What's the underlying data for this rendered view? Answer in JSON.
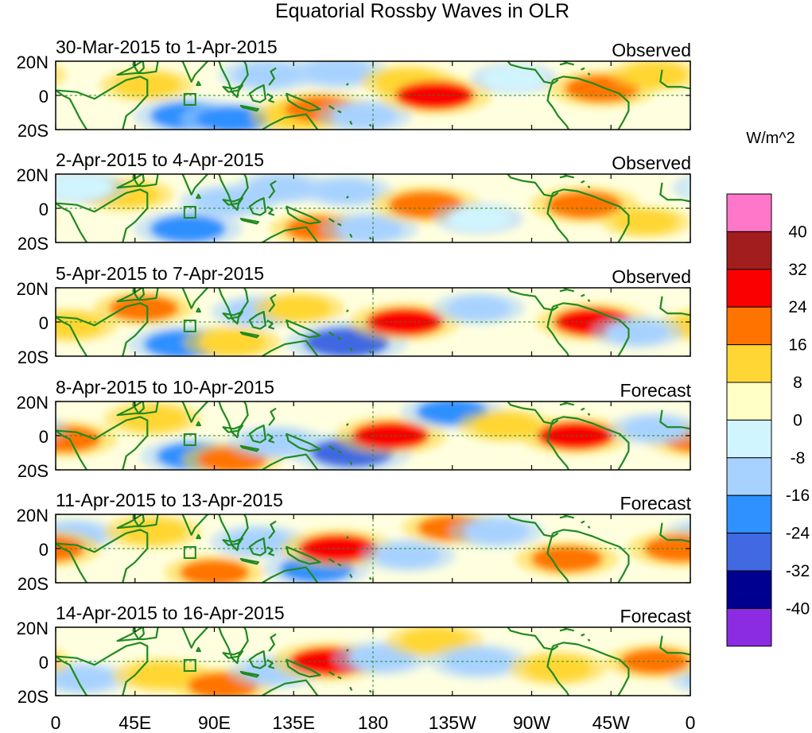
{
  "title": "Equatorial Rossby Waves in OLR",
  "panels": [
    {
      "date_range": "30-Mar-2015 to 1-Apr-2015",
      "status": "Observed"
    },
    {
      "date_range": "2-Apr-2015 to 4-Apr-2015",
      "status": "Observed"
    },
    {
      "date_range": "5-Apr-2015 to 7-Apr-2015",
      "status": "Observed"
    },
    {
      "date_range": "8-Apr-2015 to 10-Apr-2015",
      "status": "Forecast"
    },
    {
      "date_range": "11-Apr-2015 to 13-Apr-2015",
      "status": "Forecast"
    },
    {
      "date_range": "14-Apr-2015 to 16-Apr-2015",
      "status": "Forecast"
    }
  ],
  "lat_labels": [
    "20N",
    "0",
    "20S"
  ],
  "lon_labels": [
    "0",
    "45E",
    "90E",
    "135E",
    "180",
    "135W",
    "90W",
    "45W",
    "0"
  ],
  "colorbar": {
    "unit": "W/m^2",
    "tick_labels": [
      "40",
      "32",
      "24",
      "16",
      "8",
      "0",
      "-8",
      "-16",
      "-24",
      "-32",
      "-40"
    ],
    "colors": [
      "#ff77c8",
      "#a21e1e",
      "#fa0000",
      "#ff7400",
      "#ffd633",
      "#ffffc6",
      "#d0f5ff",
      "#a7d2ff",
      "#2f90ff",
      "#4169e1",
      "#000090",
      "#8b2be2"
    ]
  },
  "anomalies": [
    [
      {
        "lon": 52,
        "lat": 6,
        "v": 12
      },
      {
        "lon": 75,
        "lat": -12,
        "v": -22
      },
      {
        "lon": 100,
        "lat": -14,
        "v": -18
      },
      {
        "lon": 120,
        "lat": 12,
        "v": -14
      },
      {
        "lon": 138,
        "lat": -12,
        "v": 14
      },
      {
        "lon": 150,
        "lat": -8,
        "v": 18
      },
      {
        "lon": 160,
        "lat": 14,
        "v": -16
      },
      {
        "lon": 175,
        "lat": -12,
        "v": -12
      },
      {
        "lon": 200,
        "lat": 8,
        "v": 12
      },
      {
        "lon": 215,
        "lat": 0,
        "v": 26
      },
      {
        "lon": 260,
        "lat": 10,
        "v": -6
      },
      {
        "lon": 310,
        "lat": 4,
        "v": 22
      },
      {
        "lon": 340,
        "lat": 12,
        "v": 10
      }
    ],
    [
      {
        "lon": 40,
        "lat": 8,
        "v": 12
      },
      {
        "lon": 75,
        "lat": -12,
        "v": -22
      },
      {
        "lon": 98,
        "lat": 4,
        "v": -14
      },
      {
        "lon": 128,
        "lat": 12,
        "v": -12
      },
      {
        "lon": 150,
        "lat": -12,
        "v": 16
      },
      {
        "lon": 165,
        "lat": 10,
        "v": -10
      },
      {
        "lon": 178,
        "lat": -12,
        "v": -14
      },
      {
        "lon": 210,
        "lat": 2,
        "v": 22
      },
      {
        "lon": 240,
        "lat": -6,
        "v": -8
      },
      {
        "lon": 300,
        "lat": 2,
        "v": 22
      },
      {
        "lon": 335,
        "lat": -8,
        "v": 8
      },
      {
        "lon": 15,
        "lat": 12,
        "v": -8
      }
    ],
    [
      {
        "lon": 8,
        "lat": -2,
        "v": 12
      },
      {
        "lon": 50,
        "lat": 8,
        "v": 16
      },
      {
        "lon": 72,
        "lat": -13,
        "v": -24
      },
      {
        "lon": 100,
        "lat": -12,
        "v": 14
      },
      {
        "lon": 115,
        "lat": 6,
        "v": -12
      },
      {
        "lon": 138,
        "lat": 8,
        "v": 10
      },
      {
        "lon": 165,
        "lat": -12,
        "v": -32
      },
      {
        "lon": 198,
        "lat": 0,
        "v": 24
      },
      {
        "lon": 240,
        "lat": 8,
        "v": -10
      },
      {
        "lon": 305,
        "lat": 0,
        "v": 26
      },
      {
        "lon": 330,
        "lat": -6,
        "v": -10
      }
    ],
    [
      {
        "lon": 5,
        "lat": -2,
        "v": 20
      },
      {
        "lon": 55,
        "lat": 10,
        "v": 14
      },
      {
        "lon": 78,
        "lat": -12,
        "v": -20
      },
      {
        "lon": 100,
        "lat": -14,
        "v": 16
      },
      {
        "lon": 125,
        "lat": -4,
        "v": -14
      },
      {
        "lon": 168,
        "lat": -10,
        "v": -30
      },
      {
        "lon": 190,
        "lat": 0,
        "v": 24
      },
      {
        "lon": 225,
        "lat": 14,
        "v": -18
      },
      {
        "lon": 255,
        "lat": 6,
        "v": 12
      },
      {
        "lon": 295,
        "lat": 0,
        "v": 24
      },
      {
        "lon": 340,
        "lat": 4,
        "v": -10
      }
    ],
    [
      {
        "lon": 10,
        "lat": 8,
        "v": -10
      },
      {
        "lon": 55,
        "lat": 10,
        "v": 14
      },
      {
        "lon": 90,
        "lat": -14,
        "v": 16
      },
      {
        "lon": 115,
        "lat": 4,
        "v": -14
      },
      {
        "lon": 148,
        "lat": -12,
        "v": -20
      },
      {
        "lon": 160,
        "lat": 0,
        "v": 26
      },
      {
        "lon": 200,
        "lat": -4,
        "v": -12
      },
      {
        "lon": 225,
        "lat": 12,
        "v": 16
      },
      {
        "lon": 250,
        "lat": 10,
        "v": -12
      },
      {
        "lon": 290,
        "lat": -6,
        "v": 18
      },
      {
        "lon": 355,
        "lat": 0,
        "v": 22
      }
    ],
    [
      {
        "lon": 15,
        "lat": -10,
        "v": -12
      },
      {
        "lon": 60,
        "lat": -8,
        "v": 14
      },
      {
        "lon": 95,
        "lat": -14,
        "v": 18
      },
      {
        "lon": 125,
        "lat": -6,
        "v": -12
      },
      {
        "lon": 155,
        "lat": 0,
        "v": 26
      },
      {
        "lon": 185,
        "lat": 2,
        "v": -14
      },
      {
        "lon": 215,
        "lat": 12,
        "v": 14
      },
      {
        "lon": 240,
        "lat": 0,
        "v": -16
      },
      {
        "lon": 285,
        "lat": -4,
        "v": 14
      },
      {
        "lon": 340,
        "lat": 0,
        "v": 16
      }
    ]
  ]
}
